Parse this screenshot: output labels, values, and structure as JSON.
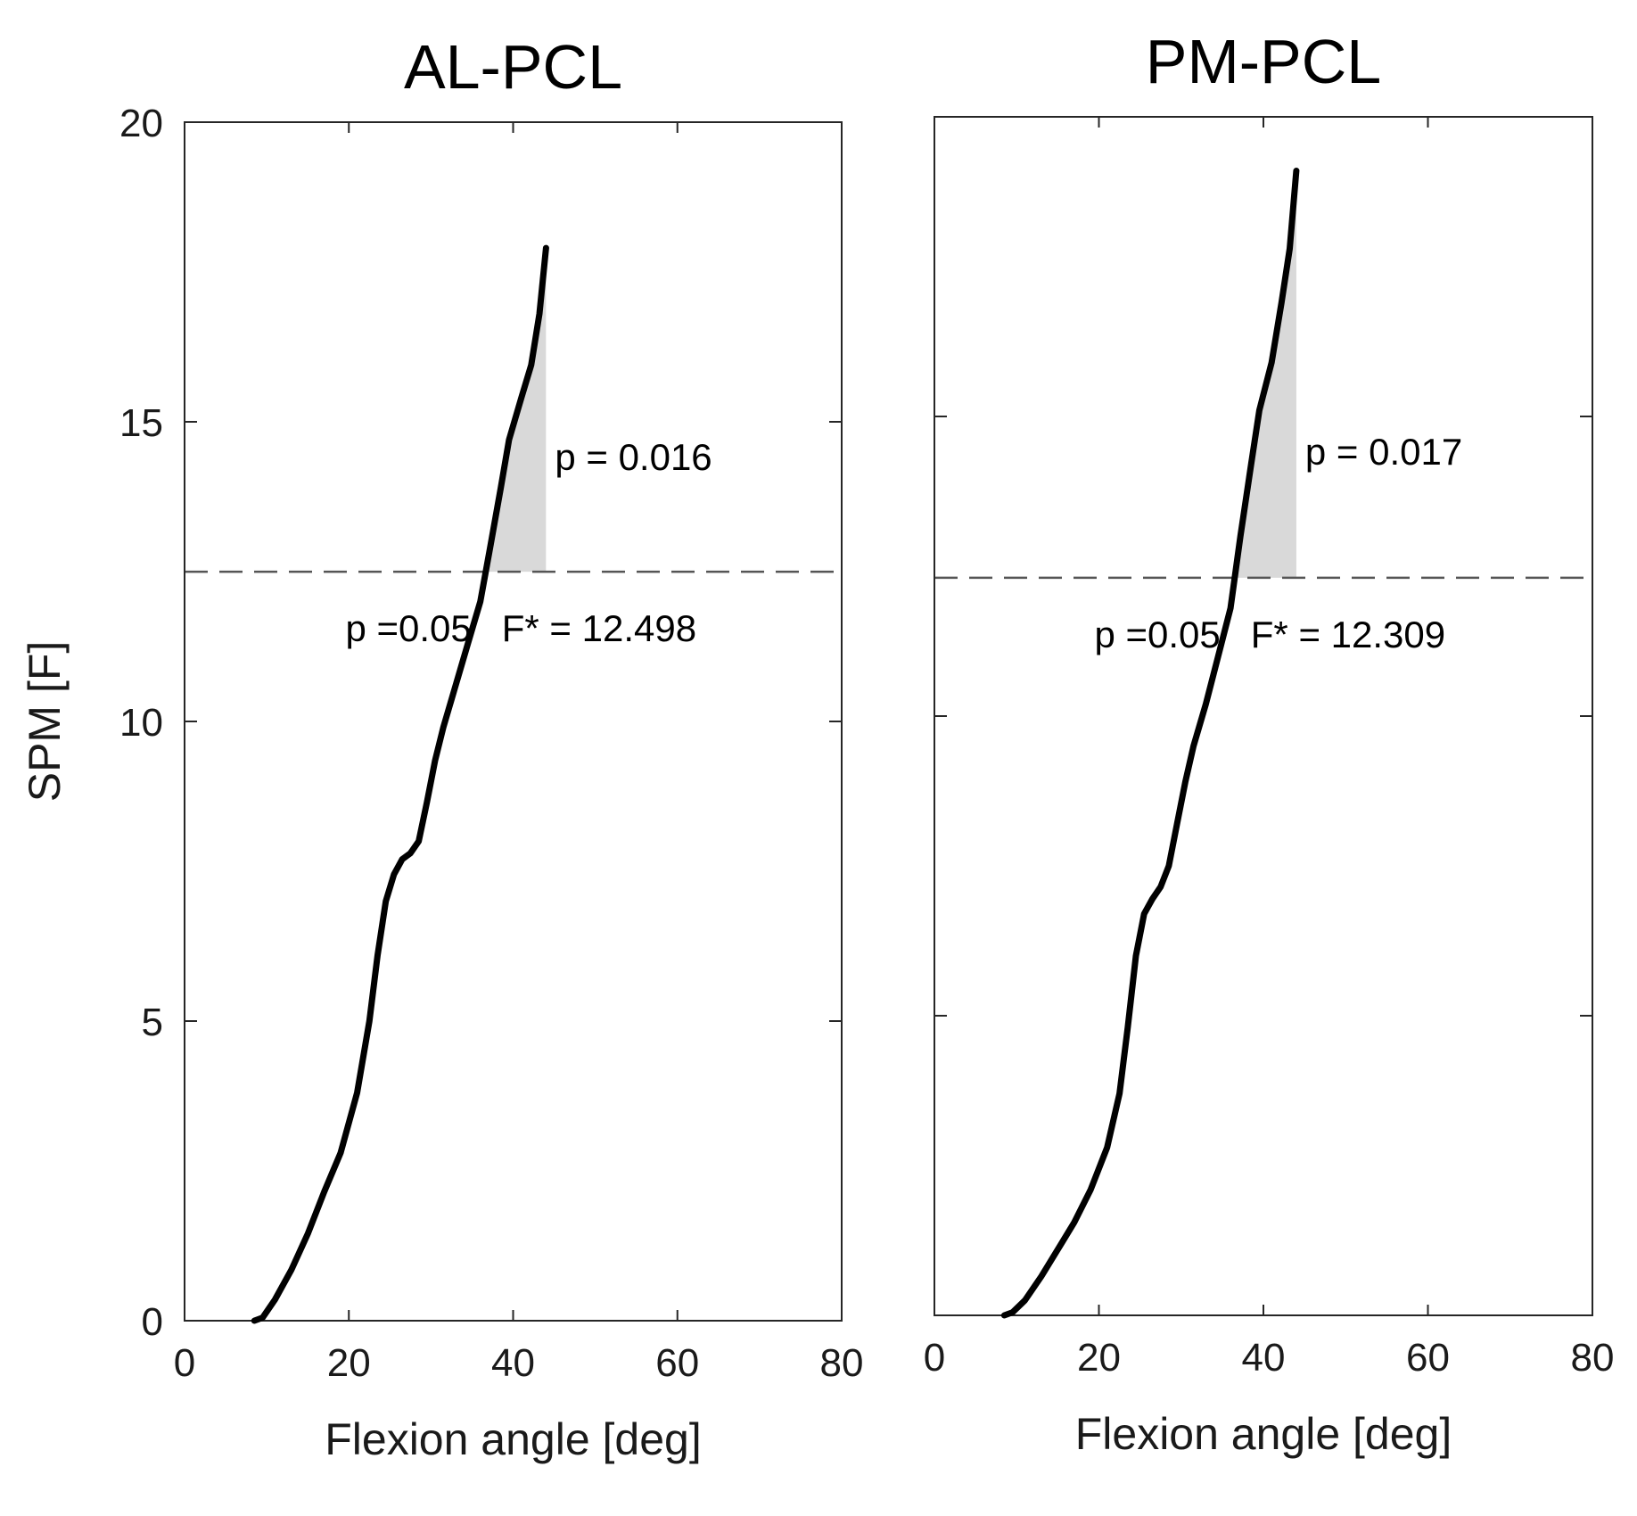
{
  "chart_data": [
    {
      "type": "line",
      "title": "AL-PCL",
      "xlabel": "Flexion angle [deg]",
      "ylabel": "SPM [F]",
      "xlim": [
        0,
        80
      ],
      "ylim": [
        0,
        20
      ],
      "xticks": [
        "0",
        "20",
        "40",
        "60",
        "80"
      ],
      "yticks": [
        "0",
        "5",
        "10",
        "15",
        "20"
      ],
      "show_ylabel": true,
      "show_yticklabels": true,
      "threshold": 12.498,
      "p_value_label": "p = 0.016",
      "alpha_label": "p =0.05",
      "threshold_label": "F* = 12.498",
      "series": [
        {
          "name": "SPM{F}",
          "x": [
            8.5,
            9.5,
            11,
            13,
            15,
            17,
            19,
            21,
            22.5,
            23.5,
            24.5,
            25.5,
            26.5,
            27.5,
            28.5,
            29.5,
            30.5,
            31.5,
            33,
            34.5,
            36,
            37.2,
            38.5,
            39.5,
            41,
            42.2,
            43.2,
            44
          ],
          "y": [
            0,
            0.05,
            0.35,
            0.85,
            1.45,
            2.15,
            2.8,
            3.8,
            5.0,
            6.1,
            7.0,
            7.45,
            7.7,
            7.8,
            8.0,
            8.65,
            9.35,
            9.9,
            10.6,
            11.3,
            12.0,
            12.9,
            13.9,
            14.7,
            15.4,
            15.95,
            16.8,
            17.9
          ]
        }
      ]
    },
    {
      "type": "line",
      "title": "PM-PCL",
      "xlabel": "Flexion angle [deg]",
      "ylabel": "",
      "xlim": [
        0,
        80
      ],
      "ylim": [
        0,
        20
      ],
      "xticks": [
        "0",
        "20",
        "40",
        "60",
        "80"
      ],
      "yticks": [
        "0",
        "5",
        "10",
        "15",
        "20"
      ],
      "show_ylabel": false,
      "show_yticklabels": false,
      "threshold": 12.309,
      "p_value_label": "p = 0.017",
      "alpha_label": "p =0.05",
      "threshold_label": "F* = 12.309",
      "series": [
        {
          "name": "SPM{F}",
          "x": [
            8.5,
            9.5,
            11,
            13,
            15,
            17,
            19,
            21,
            22.5,
            23.5,
            24.5,
            25.5,
            26.5,
            27.5,
            28.5,
            29.5,
            30.5,
            31.5,
            33,
            34.5,
            36,
            37.2,
            38.5,
            39.5,
            41,
            42.2,
            43.2,
            44
          ],
          "y": [
            0,
            0.05,
            0.25,
            0.65,
            1.1,
            1.55,
            2.1,
            2.8,
            3.7,
            4.8,
            6.0,
            6.7,
            6.95,
            7.15,
            7.5,
            8.2,
            8.9,
            9.5,
            10.2,
            11.0,
            11.8,
            13.0,
            14.2,
            15.1,
            15.9,
            16.9,
            17.8,
            19.1
          ]
        }
      ]
    }
  ]
}
